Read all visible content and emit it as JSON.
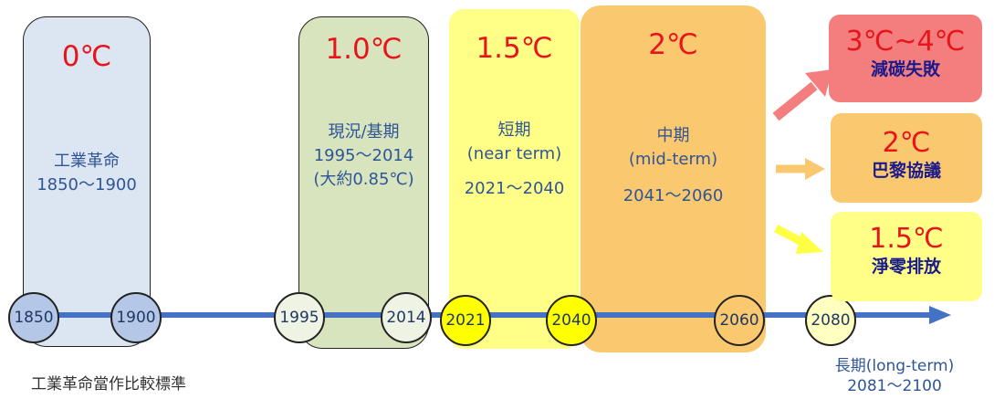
{
  "periods": {
    "industrial": {
      "temp": "0℃",
      "label_line1": "工業革命",
      "label_line2": "1850～1900",
      "color": "#dce6f2"
    },
    "current": {
      "temp": "1.0℃",
      "label_line1": "現況/基期",
      "label_line2": "1995～2014",
      "label_line3": "(大約0.85℃)",
      "color": "#d7e4bd"
    },
    "near": {
      "temp": "1.5℃",
      "label_line1": "短期",
      "label_line2": "(near term)",
      "label_line3": "2021～2040",
      "color": "#ffff88"
    },
    "mid": {
      "temp": "2℃",
      "label_line1": "中期",
      "label_line2": "(mid-term)",
      "label_line3": "2041～2060",
      "color": "#fac86e"
    }
  },
  "timeline": {
    "years": [
      "1850",
      "1900",
      "1995",
      "2014",
      "2021",
      "2040",
      "2060",
      "2080"
    ]
  },
  "outcomes": {
    "fail": {
      "temp": "3℃~4℃",
      "label": "減碳失敗",
      "color": "#f47e7e"
    },
    "paris": {
      "temp": "2℃",
      "label": "巴黎協議",
      "color": "#fac86e"
    },
    "netzero": {
      "temp": "1.5℃",
      "label": "淨零排放",
      "color": "#ffff88"
    }
  },
  "footer": {
    "baseline_note": "工業革命當作比較標準",
    "long_term_line1": "長期(long-term)",
    "long_term_line2": "2081～2100"
  }
}
